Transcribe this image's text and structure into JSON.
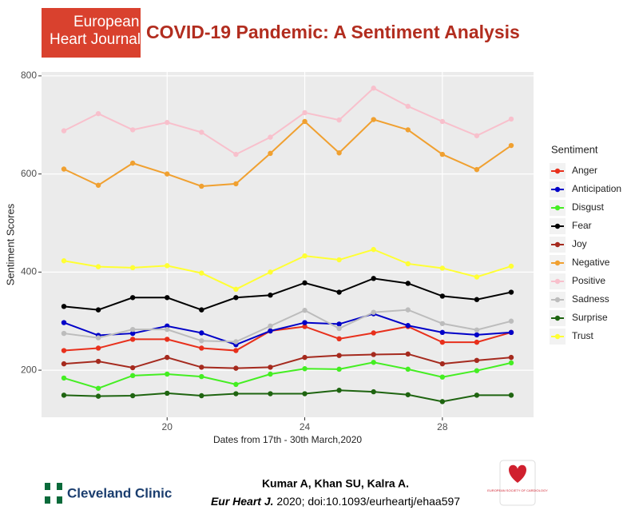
{
  "header": {
    "logo_line1": "European",
    "logo_line2": "Heart Journal"
  },
  "chart_data": {
    "type": "line",
    "title": "COVID-19 Pandemic: A Sentiment Analysis",
    "x_label": "Dates from 17th - 30th March,2020",
    "y_label": "Sentiment Scores",
    "legend_title": "Sentiment",
    "x": [
      17,
      18,
      19,
      20,
      21,
      22,
      23,
      24,
      25,
      26,
      27,
      28,
      29,
      30
    ],
    "xlim": [
      16.35,
      30.65
    ],
    "xticks": [
      20,
      24,
      28
    ],
    "ylim": [
      104,
      808
    ],
    "yticks": [
      200,
      400,
      600,
      800
    ],
    "grid": true,
    "series": [
      {
        "name": "Anger",
        "color": "#e8301c",
        "values": [
          240,
          245,
          263,
          263,
          245,
          240,
          280,
          289,
          264,
          276,
          289,
          257,
          257,
          277
        ]
      },
      {
        "name": "Anticipation",
        "color": "#0000c8",
        "values": [
          297,
          271,
          275,
          290,
          276,
          252,
          280,
          297,
          294,
          315,
          291,
          277,
          272,
          277
        ]
      },
      {
        "name": "Disgust",
        "color": "#44ee22",
        "values": [
          184,
          163,
          189,
          192,
          187,
          171,
          192,
          203,
          202,
          216,
          202,
          186,
          199,
          215
        ]
      },
      {
        "name": "Fear",
        "color": "#000000",
        "values": [
          330,
          323,
          348,
          348,
          323,
          348,
          353,
          378,
          359,
          387,
          377,
          351,
          344,
          359
        ]
      },
      {
        "name": "Joy",
        "color": "#a52a1e",
        "values": [
          213,
          218,
          205,
          226,
          206,
          204,
          206,
          226,
          230,
          232,
          233,
          213,
          220,
          226
        ]
      },
      {
        "name": "Negative",
        "color": "#f0a030",
        "values": [
          610,
          577,
          622,
          600,
          575,
          580,
          642,
          707,
          643,
          711,
          690,
          640,
          609,
          658
        ]
      },
      {
        "name": "Positive",
        "color": "#f8c0cc",
        "values": [
          688,
          723,
          690,
          705,
          685,
          640,
          675,
          725,
          710,
          775,
          738,
          707,
          678,
          712
        ]
      },
      {
        "name": "Sadness",
        "color": "#bcbcbc",
        "values": [
          275,
          266,
          283,
          283,
          260,
          258,
          290,
          322,
          285,
          318,
          323,
          295,
          282,
          300
        ]
      },
      {
        "name": "Surprise",
        "color": "#1e6410",
        "values": [
          149,
          147,
          148,
          153,
          148,
          152,
          152,
          152,
          159,
          156,
          150,
          136,
          149,
          149
        ]
      },
      {
        "name": "Trust",
        "color": "#ffff33",
        "values": [
          423,
          411,
          409,
          413,
          398,
          365,
          400,
          433,
          425,
          446,
          417,
          408,
          390,
          412
        ]
      }
    ]
  },
  "footer": {
    "brand": "Cleveland Clinic",
    "authors": "Kumar A, Khan SU, Kalra A.",
    "journal": "Eur Heart J.",
    "citation": " 2020; doi:10.1093/eurheartj/ehaa597",
    "society": "EUROPEAN SOCIETY OF CARDIOLOGY"
  }
}
